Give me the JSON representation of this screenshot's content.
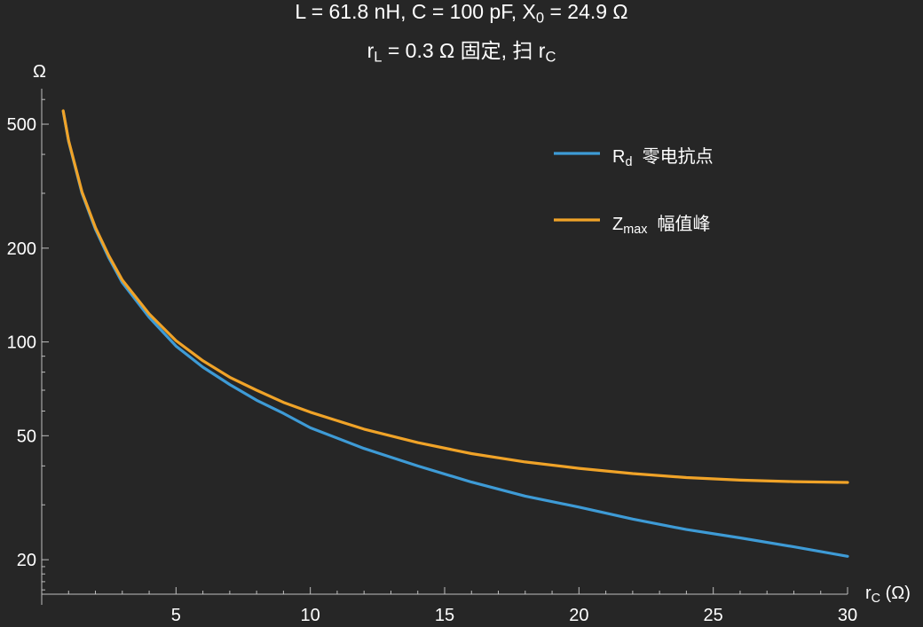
{
  "chart_data": {
    "type": "line",
    "title_line1": {
      "a": "L = 61.8 nH,  C = 100 pF,  X",
      "a_sub": "0",
      "b": " = 24.9 Ω"
    },
    "title_line2": {
      "a": "r",
      "a_sub": "L",
      "b": " = 0.3 Ω 固定,  扫 r",
      "b_sub": "C"
    },
    "ylabel": "Ω",
    "xlabel": {
      "main": "r",
      "sub": "C",
      "tail": " (Ω)"
    },
    "y_scale": "log",
    "xlim": [
      0,
      30
    ],
    "ylim": [
      15.5,
      650
    ],
    "x_ticks": [
      5,
      10,
      15,
      20,
      25,
      30
    ],
    "x_tick_labels": [
      "5",
      "10",
      "15",
      "20",
      "25",
      "30"
    ],
    "y_ticks": [
      20,
      50,
      100,
      200,
      500
    ],
    "y_tick_labels": [
      "20",
      "50",
      "100",
      "200",
      "500"
    ],
    "legend_position": "top-right",
    "series": [
      {
        "name": "R",
        "name_sub": "d",
        "name_tail": "零电抗点",
        "color": "#3e9bd6",
        "x": [
          0.8,
          1,
          1.5,
          2,
          2.5,
          3,
          4,
          5,
          6,
          7,
          8,
          9,
          10,
          12,
          14,
          16,
          18,
          20,
          22,
          24,
          26,
          28,
          30
        ],
        "y": [
          550,
          440,
          300,
          230,
          186,
          155,
          120,
          97,
          83,
          73,
          65,
          59,
          53,
          45.5,
          40,
          35.5,
          32,
          29.5,
          27,
          25,
          23.5,
          22,
          20.5
        ]
      },
      {
        "name": "Z",
        "name_sub": "max",
        "name_tail": "幅值峰",
        "color": "#f0a328",
        "x": [
          0.8,
          1,
          1.5,
          2,
          2.5,
          3,
          4,
          5,
          6,
          7,
          8,
          9,
          10,
          12,
          14,
          16,
          18,
          20,
          22,
          24,
          26,
          28,
          30
        ],
        "y": [
          552,
          443,
          303,
          233,
          189,
          158,
          123,
          101,
          87,
          77,
          70,
          64,
          59.5,
          52.5,
          47.5,
          43.8,
          41.2,
          39.3,
          37.8,
          36.7,
          36,
          35.6,
          35.4
        ]
      }
    ]
  }
}
